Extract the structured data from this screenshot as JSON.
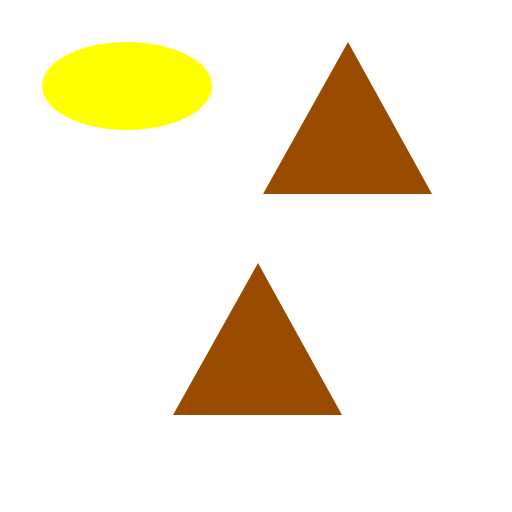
{
  "scene": {
    "background": "#ffffff",
    "shapes": [
      {
        "name": "yellow-ellipse",
        "type": "ellipse",
        "fill": "#ffff00"
      },
      {
        "name": "brown-triangle-upper",
        "type": "triangle",
        "fill": "#994c00"
      },
      {
        "name": "brown-triangle-lower",
        "type": "triangle",
        "fill": "#994c00"
      }
    ]
  }
}
